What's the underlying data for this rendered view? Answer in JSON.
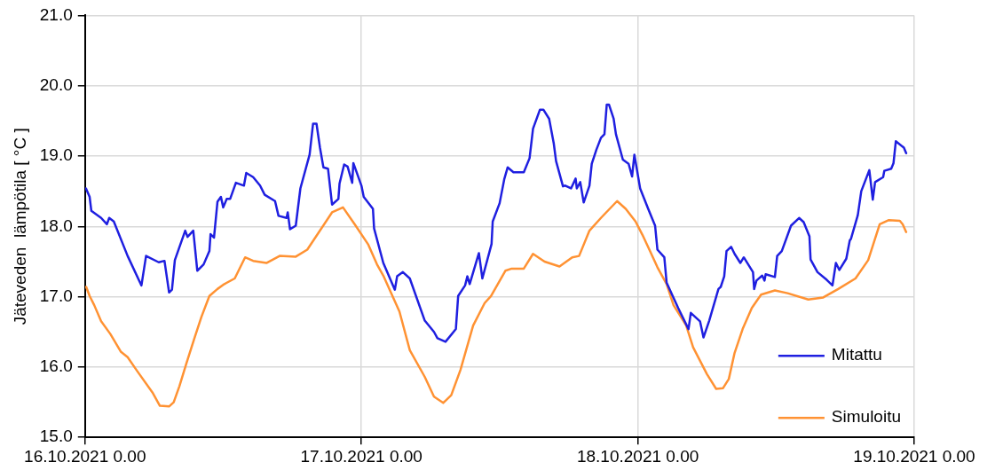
{
  "chart_data": {
    "type": "line",
    "ylabel": "Jäteveden  lämpötila [ °C ]",
    "xlim": [
      "2021-10-16T00:00",
      "2021-10-19T00:00"
    ],
    "xticks": [
      {
        "value": "2021-10-16T00:00",
        "label": "16.10.2021 0.00"
      },
      {
        "value": "2021-10-17T00:00",
        "label": "17.10.2021 0.00"
      },
      {
        "value": "2021-10-18T00:00",
        "label": "18.10.2021 0.00"
      },
      {
        "value": "2021-10-19T00:00",
        "label": "19.10.2021 0.00"
      }
    ],
    "ylim": [
      15,
      21
    ],
    "yticks": [
      {
        "value": 15,
        "label": "15.0"
      },
      {
        "value": 16,
        "label": "16.0"
      },
      {
        "value": 17,
        "label": "17.0"
      },
      {
        "value": 18,
        "label": "18.0"
      },
      {
        "value": 19,
        "label": "19.0"
      },
      {
        "value": 20,
        "label": "20.0"
      },
      {
        "value": 21,
        "label": "21.0"
      }
    ],
    "grid": true,
    "legend": "bottom right",
    "marker": "none",
    "line_style": "solid",
    "series": [
      {
        "name": "Mitattu",
        "color": "#1f1fe0",
        "x": [
          "2021-10-16T00:05",
          "2021-10-16T00:24",
          "2021-10-16T00:33",
          "2021-10-16T01:24",
          "2021-10-16T01:54",
          "2021-10-16T02:06",
          "2021-10-16T02:30",
          "2021-10-16T03:42",
          "2021-10-16T04:54",
          "2021-10-16T05:18",
          "2021-10-16T06:24",
          "2021-10-16T06:54",
          "2021-10-16T07:18",
          "2021-10-16T07:33",
          "2021-10-16T07:48",
          "2021-10-16T08:42",
          "2021-10-16T08:54",
          "2021-10-16T09:24",
          "2021-10-16T09:45",
          "2021-10-16T10:18",
          "2021-10-16T10:48",
          "2021-10-16T10:54",
          "2021-10-16T11:12",
          "2021-10-16T11:30",
          "2021-10-16T11:48",
          "2021-10-16T12:00",
          "2021-10-16T12:18",
          "2021-10-16T12:36",
          "2021-10-16T13:06",
          "2021-10-16T13:48",
          "2021-10-16T14:00",
          "2021-10-16T14:36",
          "2021-10-16T15:12",
          "2021-10-16T15:36",
          "2021-10-16T16:30",
          "2021-10-16T16:48",
          "2021-10-16T17:30",
          "2021-10-16T17:36",
          "2021-10-16T17:48",
          "2021-10-16T18:18",
          "2021-10-16T18:42",
          "2021-10-16T19:30",
          "2021-10-16T19:48",
          "2021-10-16T20:06",
          "2021-10-16T20:24",
          "2021-10-16T20:42",
          "2021-10-16T21:06",
          "2021-10-16T21:27",
          "2021-10-16T22:00",
          "2021-10-16T22:06",
          "2021-10-16T22:30",
          "2021-10-16T22:48",
          "2021-10-16T23:12",
          "2021-10-16T23:18",
          "2021-10-17T00:00",
          "2021-10-17T00:12",
          "2021-10-17T01:00",
          "2021-10-17T01:06",
          "2021-10-17T01:54",
          "2021-10-17T02:54",
          "2021-10-17T03:06",
          "2021-10-17T03:36",
          "2021-10-17T04:12",
          "2021-10-17T05:30",
          "2021-10-17T06:18",
          "2021-10-17T06:36",
          "2021-10-17T07:18",
          "2021-10-17T08:12",
          "2021-10-17T08:24",
          "2021-10-17T09:00",
          "2021-10-17T09:12",
          "2021-10-17T09:24",
          "2021-10-17T10:12",
          "2021-10-17T10:30",
          "2021-10-17T11:18",
          "2021-10-17T11:24",
          "2021-10-17T12:00",
          "2021-10-17T12:24",
          "2021-10-17T12:42",
          "2021-10-17T13:12",
          "2021-10-17T14:06",
          "2021-10-17T14:36",
          "2021-10-17T14:54",
          "2021-10-17T15:30",
          "2021-10-17T15:48",
          "2021-10-17T16:18",
          "2021-10-17T16:42",
          "2021-10-17T16:54",
          "2021-10-17T17:30",
          "2021-10-17T17:42",
          "2021-10-17T18:12",
          "2021-10-17T18:36",
          "2021-10-17T18:42",
          "2021-10-17T19:00",
          "2021-10-17T19:18",
          "2021-10-17T19:48",
          "2021-10-17T20:00",
          "2021-10-17T20:24",
          "2021-10-17T20:48",
          "2021-10-17T21:06",
          "2021-10-17T21:18",
          "2021-10-17T21:30",
          "2021-10-17T21:54",
          "2021-10-17T22:06",
          "2021-10-17T22:42",
          "2021-10-17T23:12",
          "2021-10-17T23:30",
          "2021-10-17T23:42",
          "2021-10-18T00:12",
          "2021-10-18T00:54",
          "2021-10-18T01:30",
          "2021-10-18T01:42",
          "2021-10-18T02:18",
          "2021-10-18T02:30",
          "2021-10-18T03:30",
          "2021-10-18T04:24",
          "2021-10-18T04:36",
          "2021-10-18T05:24",
          "2021-10-18T05:42",
          "2021-10-18T06:12",
          "2021-10-18T07:00",
          "2021-10-18T07:12",
          "2021-10-18T07:30",
          "2021-10-18T07:42",
          "2021-10-18T08:06",
          "2021-10-18T08:24",
          "2021-10-18T08:54",
          "2021-10-18T09:12",
          "2021-10-18T10:00",
          "2021-10-18T10:06",
          "2021-10-18T10:18",
          "2021-10-18T10:48",
          "2021-10-18T11:00",
          "2021-10-18T11:06",
          "2021-10-18T11:54",
          "2021-10-18T12:06",
          "2021-10-18T12:30",
          "2021-10-18T13:18",
          "2021-10-18T14:00",
          "2021-10-18T14:24",
          "2021-10-18T14:54",
          "2021-10-18T15:00",
          "2021-10-18T15:36",
          "2021-10-18T16:24",
          "2021-10-18T16:54",
          "2021-10-18T17:12",
          "2021-10-18T17:30",
          "2021-10-18T18:06",
          "2021-10-18T18:24",
          "2021-10-18T18:30",
          "2021-10-18T19:06",
          "2021-10-18T19:24",
          "2021-10-18T20:06",
          "2021-10-18T20:24",
          "2021-10-18T20:36",
          "2021-10-18T21:18",
          "2021-10-18T21:24",
          "2021-10-18T22:00",
          "2021-10-18T22:12",
          "2021-10-18T22:24",
          "2021-10-18T23:06",
          "2021-10-18T23:18"
        ],
        "values": [
          18.54,
          18.42,
          18.22,
          18.12,
          18.03,
          18.12,
          18.07,
          17.58,
          17.16,
          17.58,
          17.49,
          17.51,
          17.06,
          17.1,
          17.52,
          17.94,
          17.85,
          17.94,
          17.37,
          17.46,
          17.65,
          17.89,
          17.84,
          18.35,
          18.42,
          18.27,
          18.39,
          18.39,
          18.62,
          18.58,
          18.76,
          18.7,
          18.58,
          18.45,
          18.36,
          18.15,
          18.12,
          18.2,
          17.96,
          18.01,
          18.54,
          19.02,
          19.46,
          19.46,
          19.12,
          18.84,
          18.82,
          18.31,
          18.39,
          18.61,
          18.88,
          18.85,
          18.62,
          18.9,
          18.58,
          18.42,
          18.25,
          17.97,
          17.48,
          17.1,
          17.29,
          17.35,
          17.26,
          16.66,
          16.5,
          16.41,
          16.36,
          16.54,
          17.01,
          17.16,
          17.29,
          17.18,
          17.62,
          17.26,
          17.75,
          18.07,
          18.33,
          18.67,
          18.84,
          18.77,
          18.77,
          18.97,
          19.39,
          19.66,
          19.66,
          19.53,
          19.18,
          18.93,
          18.57,
          18.58,
          18.54,
          18.68,
          18.54,
          18.63,
          18.34,
          18.58,
          18.89,
          19.09,
          19.26,
          19.31,
          19.73,
          19.73,
          19.53,
          19.31,
          18.95,
          18.89,
          18.71,
          19.02,
          18.54,
          18.25,
          18.01,
          17.67,
          17.56,
          17.2,
          16.84,
          16.54,
          16.77,
          16.65,
          16.42,
          16.66,
          17.11,
          17.14,
          17.29,
          17.65,
          17.71,
          17.61,
          17.48,
          17.56,
          17.35,
          17.11,
          17.23,
          17.3,
          17.23,
          17.32,
          17.28,
          17.58,
          17.65,
          18.01,
          18.12,
          18.06,
          17.86,
          17.53,
          17.35,
          17.24,
          17.16,
          17.48,
          17.38,
          17.54,
          17.8,
          17.82,
          18.16,
          18.5,
          18.8,
          18.38,
          18.63,
          18.7,
          18.79,
          18.82,
          18.9,
          19.21,
          19.12,
          19.04
        ]
      },
      {
        "name": "Simuloitu",
        "color": "#ff9233",
        "x": [
          "2021-10-16T00:06",
          "2021-10-16T00:24",
          "2021-10-16T00:48",
          "2021-10-16T01:24",
          "2021-10-16T02:12",
          "2021-10-16T03:06",
          "2021-10-16T03:42",
          "2021-10-16T04:30",
          "2021-10-16T05:51",
          "2021-10-16T06:30",
          "2021-10-16T07:18",
          "2021-10-16T07:42",
          "2021-10-16T08:12",
          "2021-10-16T08:48",
          "2021-10-16T09:30",
          "2021-10-16T10:06",
          "2021-10-16T10:48",
          "2021-10-16T11:30",
          "2021-10-16T12:06",
          "2021-10-16T13:00",
          "2021-10-16T13:54",
          "2021-10-16T14:36",
          "2021-10-16T15:45",
          "2021-10-16T16:54",
          "2021-10-16T18:18",
          "2021-10-16T19:18",
          "2021-10-16T20:24",
          "2021-10-16T21:27",
          "2021-10-16T22:24",
          "2021-10-16T23:30",
          "2021-10-17T00:36",
          "2021-10-17T01:21",
          "2021-10-17T01:54",
          "2021-10-17T03:18",
          "2021-10-17T04:12",
          "2021-10-17T05:30",
          "2021-10-17T06:18",
          "2021-10-17T07:06",
          "2021-10-17T07:48",
          "2021-10-17T08:36",
          "2021-10-17T09:42",
          "2021-10-17T10:42",
          "2021-10-17T11:15",
          "2021-10-17T12:30",
          "2021-10-17T13:03",
          "2021-10-17T14:06",
          "2021-10-17T14:54",
          "2021-10-17T15:54",
          "2021-10-17T17:12",
          "2021-10-17T18:18",
          "2021-10-17T18:54",
          "2021-10-17T19:48",
          "2021-10-17T20:51",
          "2021-10-17T22:12",
          "2021-10-17T22:57",
          "2021-10-17T23:48",
          "2021-10-18T00:24",
          "2021-10-18T01:00",
          "2021-10-18T01:42",
          "2021-10-18T02:30",
          "2021-10-18T03:06",
          "2021-10-18T04:12",
          "2021-10-18T04:48",
          "2021-10-18T06:00",
          "2021-10-18T06:48",
          "2021-10-18T07:24",
          "2021-10-18T07:54",
          "2021-10-18T08:24",
          "2021-10-18T09:06",
          "2021-10-18T09:54",
          "2021-10-18T10:42",
          "2021-10-18T11:54",
          "2021-10-18T13:00",
          "2021-10-18T14:48",
          "2021-10-18T16:06",
          "2021-10-18T17:24",
          "2021-10-18T18:54",
          "2021-10-18T20:00",
          "2021-10-18T21:00",
          "2021-10-18T21:48",
          "2021-10-18T22:45",
          "2021-10-18T23:00",
          "2021-10-18T23:18"
        ],
        "values": [
          17.14,
          17.01,
          16.88,
          16.65,
          16.47,
          16.22,
          16.14,
          15.95,
          15.64,
          15.45,
          15.44,
          15.5,
          15.73,
          16.05,
          16.41,
          16.71,
          17.01,
          17.11,
          17.18,
          17.26,
          17.56,
          17.51,
          17.48,
          17.58,
          17.57,
          17.67,
          17.94,
          18.2,
          18.27,
          18.01,
          17.74,
          17.46,
          17.3,
          16.79,
          16.24,
          15.86,
          15.58,
          15.49,
          15.6,
          15.96,
          16.59,
          16.91,
          17.01,
          17.37,
          17.4,
          17.4,
          17.61,
          17.5,
          17.43,
          17.56,
          17.58,
          17.94,
          18.13,
          18.36,
          18.25,
          18.07,
          17.88,
          17.67,
          17.42,
          17.18,
          16.88,
          16.59,
          16.28,
          15.9,
          15.69,
          15.7,
          15.83,
          16.2,
          16.54,
          16.84,
          17.03,
          17.09,
          17.05,
          16.96,
          16.99,
          17.11,
          17.26,
          17.52,
          18.03,
          18.09,
          18.08,
          18.03,
          17.92
        ]
      }
    ]
  }
}
